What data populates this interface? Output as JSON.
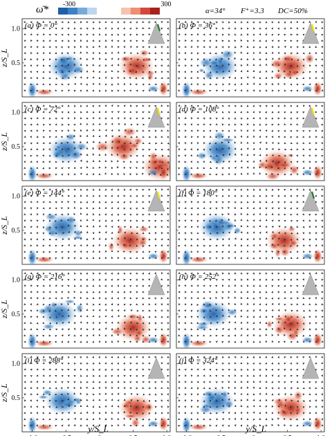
{
  "header": {
    "colorbar_label": "ω̄*",
    "colorbar_min": "-300",
    "colorbar_max": "300",
    "params": [
      "α=34°",
      "F⁺=3.3",
      "DC=50%"
    ]
  },
  "panels": [
    {
      "label": "(a) Φ = 0°",
      "phase": 0
    },
    {
      "label": "(b) Φ = 36°",
      "phase": 36
    },
    {
      "label": "(c) Φ = 72°",
      "phase": 72
    },
    {
      "label": "(d) Φ = 108°",
      "phase": 108
    },
    {
      "label": "(e) Φ = 144°",
      "phase": 144
    },
    {
      "label": "(f) Φ = 180°",
      "phase": 180
    },
    {
      "label": "(g) Φ = 216°",
      "phase": 216
    },
    {
      "label": "(h) Φ = 252°",
      "phase": 252
    },
    {
      "label": "(i) Φ = 288°",
      "phase": 288
    },
    {
      "label": "(j) Φ = 324°",
      "phase": 324
    }
  ],
  "axes": {
    "xlabel": "y/S_L",
    "ylabel": "z/S_L",
    "xticks": [
      "-1.0",
      "-0.5",
      "0",
      "0.5",
      "1.0"
    ],
    "yticks": [
      "0.5",
      "1.0"
    ]
  },
  "colors": {
    "blue_dark": "#1f5fa8",
    "blue_light": "#bcd7ee",
    "red_dark": "#a7201c",
    "red_light": "#f4c4b0",
    "delta_wing": "#b5b5b5",
    "indicator_yellow": "#f2e600",
    "indicator_green": "#1e7a2e"
  },
  "chart_data": {
    "type": "vector-field with vorticity contours",
    "x_range": [
      -1.15,
      1.05
    ],
    "y_range": [
      0,
      1.15
    ],
    "panels": [
      {
        "phase": 0,
        "vortices": [
          {
            "y": -0.5,
            "z": 0.45,
            "sign": -1
          },
          {
            "y": 0.55,
            "z": 0.45,
            "sign": 1
          }
        ]
      },
      {
        "phase": 36,
        "vortices": [
          {
            "y": -0.5,
            "z": 0.45,
            "sign": -1
          },
          {
            "y": 0.55,
            "z": 0.45,
            "sign": 1
          }
        ]
      },
      {
        "phase": 72,
        "vortices": [
          {
            "y": -0.5,
            "z": 0.45,
            "sign": -1
          },
          {
            "y": 0.35,
            "z": 0.5,
            "sign": 1
          },
          {
            "y": 0.9,
            "z": 0.2,
            "sign": 1
          }
        ]
      },
      {
        "phase": 108,
        "vortices": [
          {
            "y": -0.5,
            "z": 0.45,
            "sign": -1
          },
          {
            "y": 0.35,
            "z": 0.25,
            "sign": 1
          }
        ]
      },
      {
        "phase": 144,
        "vortices": [
          {
            "y": -0.55,
            "z": 0.55,
            "sign": -1
          },
          {
            "y": 0.45,
            "z": 0.35,
            "sign": 1
          }
        ]
      },
      {
        "phase": 180,
        "vortices": [
          {
            "y": -0.55,
            "z": 0.55,
            "sign": -1
          },
          {
            "y": 0.45,
            "z": 0.35,
            "sign": 1
          }
        ]
      },
      {
        "phase": 216,
        "vortices": [
          {
            "y": -0.6,
            "z": 0.5,
            "sign": -1
          },
          {
            "y": 0.5,
            "z": 0.3,
            "sign": 1
          }
        ]
      },
      {
        "phase": 252,
        "vortices": [
          {
            "y": -0.6,
            "z": 0.5,
            "sign": -1
          },
          {
            "y": 0.55,
            "z": 0.35,
            "sign": 1
          }
        ]
      },
      {
        "phase": 288,
        "vortices": [
          {
            "y": -0.55,
            "z": 0.45,
            "sign": -1
          },
          {
            "y": 0.55,
            "z": 0.35,
            "sign": 1
          }
        ]
      },
      {
        "phase": 324,
        "vortices": [
          {
            "y": -0.55,
            "z": 0.45,
            "sign": -1
          },
          {
            "y": 0.55,
            "z": 0.35,
            "sign": 1
          }
        ]
      }
    ]
  }
}
